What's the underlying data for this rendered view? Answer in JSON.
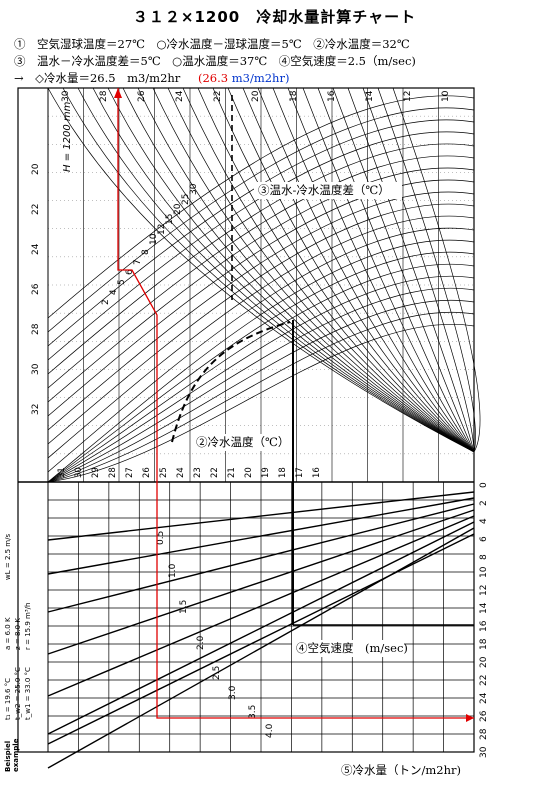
{
  "header": {
    "title": "３１２×1200　冷却水量計算チャート",
    "line1": "①　空気湿球温度＝27℃　○冷水温度－湿球温度＝5℃　②冷水温度＝32℃",
    "line2": "③　温水－冷水温度差＝5℃　○温水温度＝37℃　④空気速度＝2.5（m/sec)",
    "line3_prefix": "→　◇冷水量＝26.5　m3/m2hr",
    "line3_red": "(26.3",
    "line3_blue": "m3/m2hr)"
  },
  "footer": {
    "label": "⑤冷水量（トン/m2hr)"
  },
  "annotations": {
    "range_label": "③温水-冷水温度差（℃）",
    "cold_water_label": "②冷水温度（℃）",
    "air_velocity_label": "④空気速度　(m/sec)"
  },
  "chart_data": {
    "type": "nomogram",
    "top_axis_ticks": [
      "30",
      "28",
      "26",
      "24",
      "22",
      "20",
      "18",
      "16",
      "14",
      "12",
      "10"
    ],
    "top_left_label": "H = 1200 mm",
    "left_axis_ticks": [
      "20",
      "22",
      "24",
      "26",
      "28",
      "30",
      "32"
    ],
    "range_curve_labels": [
      "30",
      "25",
      "20",
      "15",
      "12",
      "10",
      "8",
      "7",
      "6",
      "5",
      "4",
      "2"
    ],
    "cold_water_ticks": [
      "31",
      "30",
      "29",
      "28",
      "27",
      "26",
      "25",
      "24",
      "23",
      "22",
      "21",
      "20",
      "19",
      "18",
      "17",
      "16"
    ],
    "right_axis_ticks": [
      "0",
      "2",
      "4",
      "6",
      "8",
      "10",
      "12",
      "14",
      "16",
      "18",
      "20",
      "22",
      "24",
      "26",
      "28",
      "30"
    ],
    "velocity_line_labels": [
      "0.5",
      "1.0",
      "1.5",
      "2.0",
      "2.5",
      "3.0",
      "3.5",
      "4.0"
    ],
    "example_left": [
      "t₁ = 19.6 °C",
      "t_w2 = 25.0 °C",
      "t_w1 = 33.0 °C"
    ],
    "example_right": [
      "a = 6.0 K",
      "z = 8.0 K",
      "r = 15.9 m³/h"
    ],
    "example_velocity": "wL = 2.5 m/s",
    "example_labels": [
      "Beispiel",
      "example"
    ],
    "construction": {
      "wet_bulb_c": 27,
      "approach_k": 5,
      "cold_water_c": 32,
      "range_k": 5,
      "hot_water_c": 37,
      "air_velocity_m_s": 2.5,
      "water_load_t_m2h": 26.5
    },
    "colors": {
      "construction_line": "#e00000",
      "curves": "#000000",
      "highlight_note": "#e00000",
      "note_blue": "#0033cc"
    }
  }
}
